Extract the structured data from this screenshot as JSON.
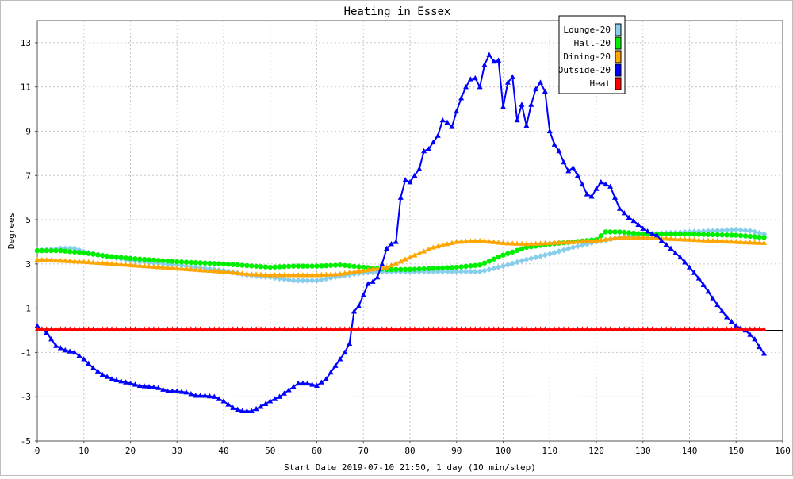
{
  "chart_data": {
    "type": "line",
    "title": "Heating in Essex",
    "xlabel": "Start Date 2019-07-10 21:50, 1 day (10 min/step)",
    "ylabel": "Degrees",
    "xlim": [
      0,
      160
    ],
    "ylim": [
      -5,
      14
    ],
    "xticks": [
      0,
      10,
      20,
      30,
      40,
      50,
      60,
      70,
      80,
      90,
      100,
      110,
      120,
      130,
      140,
      150,
      160
    ],
    "yticks": [
      -5,
      -3,
      -1,
      1,
      3,
      5,
      7,
      9,
      11,
      13
    ],
    "grid": true,
    "legend_position": "top-right",
    "series": [
      {
        "name": "Lounge-20",
        "color": "#87ceeb",
        "marker": "diamond",
        "points": [
          [
            0,
            3.6
          ],
          [
            5,
            3.7
          ],
          [
            8,
            3.7
          ],
          [
            10,
            3.55
          ],
          [
            20,
            3.15
          ],
          [
            30,
            2.95
          ],
          [
            40,
            2.7
          ],
          [
            45,
            2.5
          ],
          [
            50,
            2.4
          ],
          [
            55,
            2.25
          ],
          [
            60,
            2.25
          ],
          [
            65,
            2.45
          ],
          [
            70,
            2.6
          ],
          [
            75,
            2.65
          ],
          [
            80,
            2.65
          ],
          [
            90,
            2.65
          ],
          [
            95,
            2.65
          ],
          [
            100,
            2.9
          ],
          [
            105,
            3.2
          ],
          [
            110,
            3.45
          ],
          [
            115,
            3.75
          ],
          [
            120,
            4.0
          ],
          [
            125,
            4.2
          ],
          [
            130,
            4.35
          ],
          [
            135,
            4.4
          ],
          [
            140,
            4.45
          ],
          [
            145,
            4.5
          ],
          [
            150,
            4.55
          ],
          [
            153,
            4.5
          ],
          [
            156,
            4.35
          ]
        ]
      },
      {
        "name": "Hall-20",
        "color": "#00ee00",
        "marker": "circle",
        "points": [
          [
            0,
            3.6
          ],
          [
            5,
            3.6
          ],
          [
            10,
            3.5
          ],
          [
            15,
            3.35
          ],
          [
            20,
            3.25
          ],
          [
            30,
            3.1
          ],
          [
            40,
            3.0
          ],
          [
            50,
            2.85
          ],
          [
            55,
            2.9
          ],
          [
            60,
            2.9
          ],
          [
            65,
            2.95
          ],
          [
            70,
            2.85
          ],
          [
            75,
            2.75
          ],
          [
            80,
            2.75
          ],
          [
            90,
            2.85
          ],
          [
            95,
            2.95
          ],
          [
            100,
            3.4
          ],
          [
            105,
            3.75
          ],
          [
            110,
            3.9
          ],
          [
            115,
            4.0
          ],
          [
            120,
            4.1
          ],
          [
            122,
            4.45
          ],
          [
            125,
            4.45
          ],
          [
            130,
            4.35
          ],
          [
            135,
            4.35
          ],
          [
            140,
            4.35
          ],
          [
            150,
            4.3
          ],
          [
            156,
            4.2
          ]
        ]
      },
      {
        "name": "Dining-20",
        "color": "#ffa500",
        "marker": "triangle",
        "points": [
          [
            0,
            3.2
          ],
          [
            10,
            3.1
          ],
          [
            20,
            2.95
          ],
          [
            30,
            2.8
          ],
          [
            40,
            2.65
          ],
          [
            45,
            2.55
          ],
          [
            50,
            2.5
          ],
          [
            60,
            2.5
          ],
          [
            65,
            2.55
          ],
          [
            70,
            2.7
          ],
          [
            75,
            2.85
          ],
          [
            80,
            3.3
          ],
          [
            85,
            3.75
          ],
          [
            90,
            4.0
          ],
          [
            95,
            4.05
          ],
          [
            100,
            3.95
          ],
          [
            105,
            3.9
          ],
          [
            110,
            3.95
          ],
          [
            115,
            4.0
          ],
          [
            120,
            4.05
          ],
          [
            125,
            4.2
          ],
          [
            130,
            4.2
          ],
          [
            135,
            4.15
          ],
          [
            140,
            4.1
          ],
          [
            145,
            4.05
          ],
          [
            150,
            4.0
          ],
          [
            156,
            3.95
          ]
        ]
      },
      {
        "name": "Outside-20",
        "color": "#0000ff",
        "marker": "triangle",
        "points": [
          [
            0,
            0.2
          ],
          [
            2,
            -0.1
          ],
          [
            4,
            -0.7
          ],
          [
            6,
            -0.9
          ],
          [
            8,
            -1.0
          ],
          [
            10,
            -1.3
          ],
          [
            12,
            -1.7
          ],
          [
            14,
            -2.0
          ],
          [
            16,
            -2.2
          ],
          [
            18,
            -2.3
          ],
          [
            20,
            -2.4
          ],
          [
            22,
            -2.5
          ],
          [
            24,
            -2.55
          ],
          [
            26,
            -2.6
          ],
          [
            28,
            -2.75
          ],
          [
            30,
            -2.75
          ],
          [
            32,
            -2.8
          ],
          [
            34,
            -2.95
          ],
          [
            36,
            -2.95
          ],
          [
            38,
            -3.0
          ],
          [
            40,
            -3.2
          ],
          [
            42,
            -3.5
          ],
          [
            44,
            -3.65
          ],
          [
            46,
            -3.65
          ],
          [
            48,
            -3.45
          ],
          [
            50,
            -3.2
          ],
          [
            52,
            -3.0
          ],
          [
            54,
            -2.7
          ],
          [
            56,
            -2.4
          ],
          [
            58,
            -2.4
          ],
          [
            60,
            -2.5
          ],
          [
            62,
            -2.2
          ],
          [
            64,
            -1.6
          ],
          [
            66,
            -1.0
          ],
          [
            67,
            -0.6
          ],
          [
            68,
            0.85
          ],
          [
            69,
            1.1
          ],
          [
            70,
            1.6
          ],
          [
            71,
            2.1
          ],
          [
            72,
            2.2
          ],
          [
            73,
            2.4
          ],
          [
            74,
            3.0
          ],
          [
            75,
            3.7
          ],
          [
            76,
            3.9
          ],
          [
            77,
            4.0
          ],
          [
            78,
            6.0
          ],
          [
            79,
            6.8
          ],
          [
            80,
            6.7
          ],
          [
            81,
            7.0
          ],
          [
            82,
            7.3
          ],
          [
            83,
            8.1
          ],
          [
            84,
            8.2
          ],
          [
            85,
            8.5
          ],
          [
            86,
            8.8
          ],
          [
            87,
            9.5
          ],
          [
            88,
            9.4
          ],
          [
            89,
            9.2
          ],
          [
            90,
            9.9
          ],
          [
            91,
            10.5
          ],
          [
            92,
            11.0
          ],
          [
            93,
            11.35
          ],
          [
            94,
            11.4
          ],
          [
            95,
            11.0
          ],
          [
            96,
            12.0
          ],
          [
            97,
            12.45
          ],
          [
            98,
            12.15
          ],
          [
            99,
            12.2
          ],
          [
            100,
            10.1
          ],
          [
            101,
            11.2
          ],
          [
            102,
            11.45
          ],
          [
            103,
            9.5
          ],
          [
            104,
            10.2
          ],
          [
            105,
            9.25
          ],
          [
            106,
            10.2
          ],
          [
            107,
            10.9
          ],
          [
            108,
            11.2
          ],
          [
            109,
            10.8
          ],
          [
            110,
            9.0
          ],
          [
            111,
            8.4
          ],
          [
            112,
            8.1
          ],
          [
            113,
            7.6
          ],
          [
            114,
            7.2
          ],
          [
            115,
            7.35
          ],
          [
            116,
            7.0
          ],
          [
            117,
            6.6
          ],
          [
            118,
            6.15
          ],
          [
            119,
            6.05
          ],
          [
            120,
            6.4
          ],
          [
            121,
            6.7
          ],
          [
            122,
            6.6
          ],
          [
            123,
            6.5
          ],
          [
            124,
            6.0
          ],
          [
            125,
            5.5
          ],
          [
            126,
            5.3
          ],
          [
            127,
            5.1
          ],
          [
            128,
            4.95
          ],
          [
            130,
            4.6
          ],
          [
            132,
            4.35
          ],
          [
            133,
            4.3
          ],
          [
            134,
            4.05
          ],
          [
            136,
            3.7
          ],
          [
            138,
            3.3
          ],
          [
            140,
            2.85
          ],
          [
            142,
            2.35
          ],
          [
            144,
            1.75
          ],
          [
            146,
            1.15
          ],
          [
            148,
            0.6
          ],
          [
            150,
            0.2
          ],
          [
            152,
            0.0
          ],
          [
            153,
            -0.2
          ],
          [
            154,
            -0.4
          ],
          [
            155,
            -0.75
          ],
          [
            156,
            -1.05
          ]
        ]
      },
      {
        "name": "Heat",
        "color": "#ff0000",
        "marker": "triangle",
        "points": [
          [
            0,
            0.05
          ],
          [
            156,
            0.05
          ]
        ]
      }
    ]
  }
}
